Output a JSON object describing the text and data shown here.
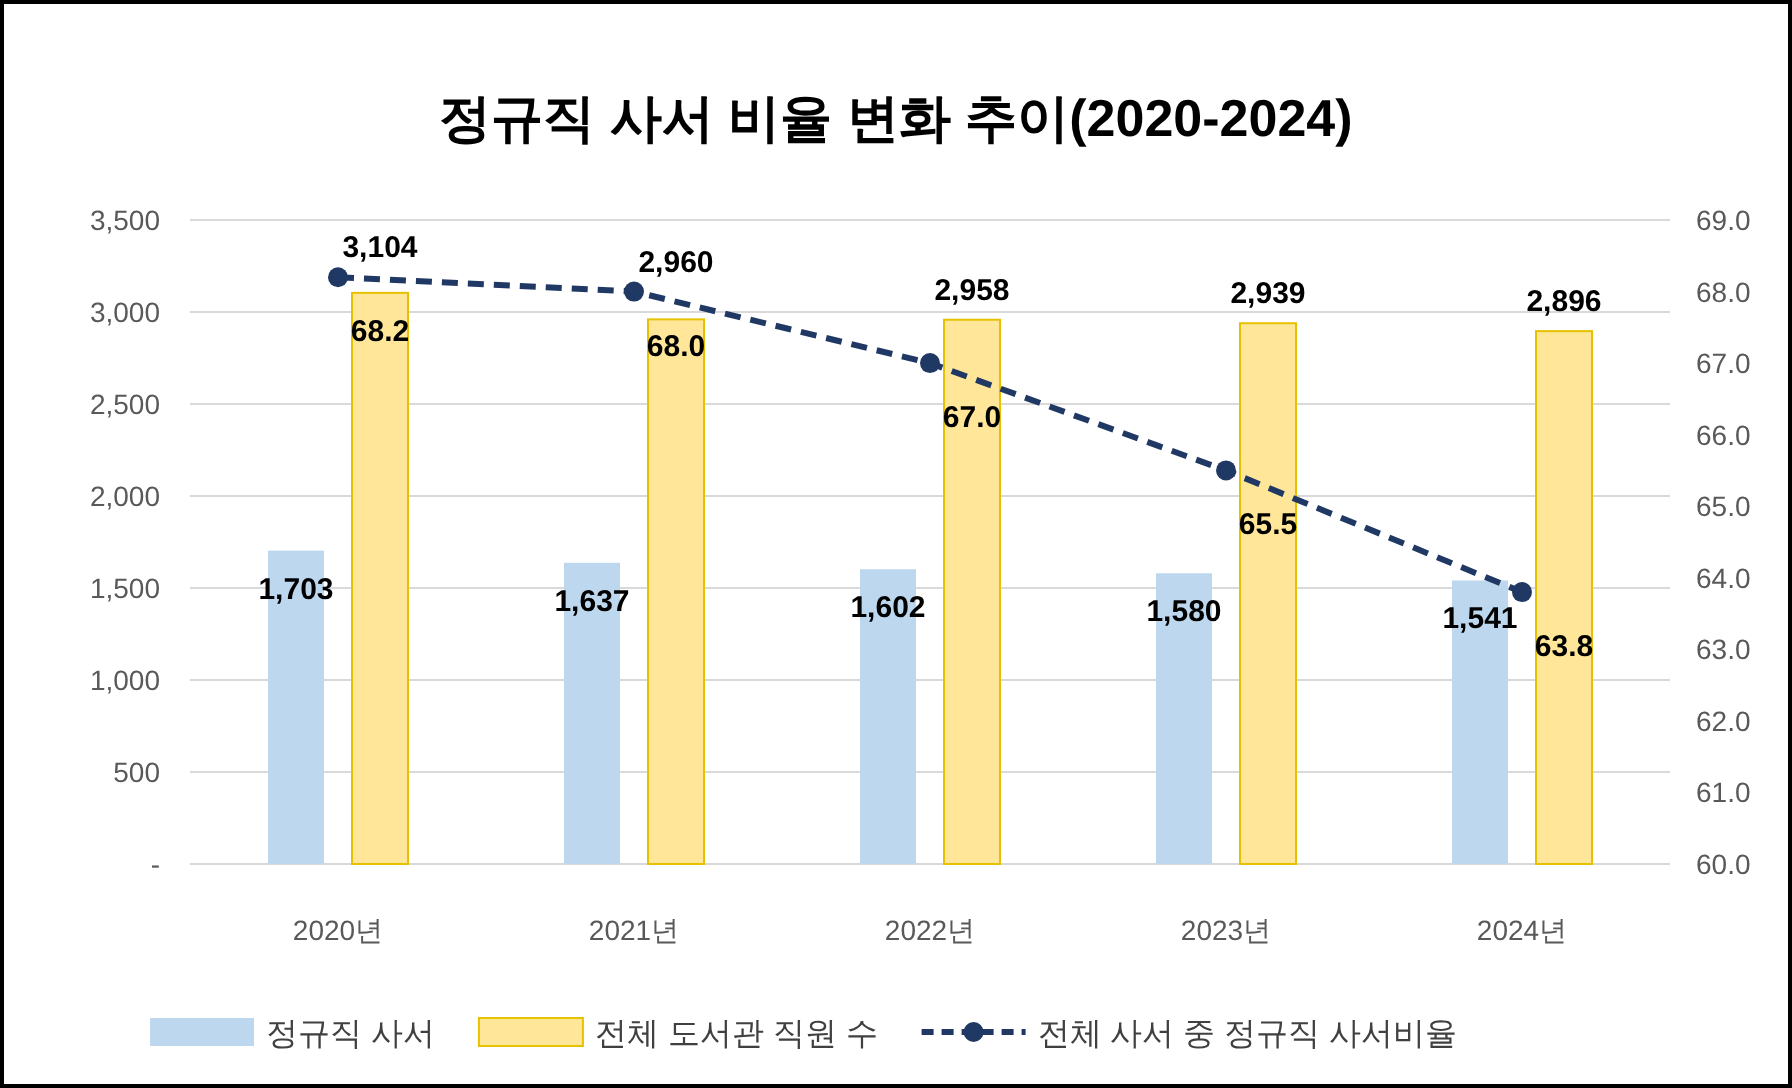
{
  "chart_data": {
    "type": "bar",
    "title": "정규직 사서 비율 변화 추이(2020-2024)",
    "categories": [
      "2020년",
      "2021년",
      "2022년",
      "2023년",
      "2024년"
    ],
    "series": [
      {
        "name": "정규직 사서",
        "color": "#bdd7ee",
        "values": [
          1703,
          1637,
          1602,
          1580,
          1541
        ],
        "value_labels": [
          "1,703",
          "1,637",
          "1,602",
          "1,580",
          "1,541"
        ]
      },
      {
        "name": "전체 도서관 직원 수",
        "color": "#ffe699",
        "values": [
          3104,
          2960,
          2958,
          2939,
          2896
        ],
        "value_labels": [
          "3,104",
          "2,960",
          "2,958",
          "2,939",
          "2,896"
        ]
      },
      {
        "name": "전체 사서 중 정규직 사서비율",
        "type": "line",
        "axis": "y2",
        "color": "#203864",
        "marker": "circle",
        "line_style": "dashed",
        "values": [
          68.2,
          68.0,
          67.0,
          65.5,
          63.8
        ],
        "value_labels": [
          "68.2",
          "68.0",
          "67.0",
          "65.5",
          "63.8"
        ]
      }
    ],
    "ylim": [
      0,
      3500
    ],
    "yticks": [
      {
        "value": 0,
        "label": "-"
      },
      500,
      {
        "value": 1000,
        "label": "1,000"
      },
      {
        "value": 1500,
        "label": "1,500"
      },
      {
        "value": 2000,
        "label": "2,000"
      },
      {
        "value": 2500,
        "label": "2,500"
      },
      {
        "value": 3000,
        "label": "3,000"
      },
      {
        "value": 3500,
        "label": "3,500"
      }
    ],
    "y2lim": [
      60,
      69
    ],
    "y2ticks": [
      {
        "value": 60,
        "label": "60.0"
      },
      {
        "value": 61,
        "label": "61.0"
      },
      {
        "value": 62,
        "label": "62.0"
      },
      {
        "value": 63,
        "label": "63.0"
      },
      {
        "value": 64,
        "label": "64.0"
      },
      {
        "value": 65,
        "label": "65.0"
      },
      {
        "value": 66,
        "label": "66.0"
      },
      {
        "value": 67,
        "label": "67.0"
      },
      {
        "value": 68,
        "label": "68.0"
      },
      {
        "value": 69,
        "label": "69.0"
      }
    ],
    "grid": "y",
    "legend": "bottom"
  }
}
